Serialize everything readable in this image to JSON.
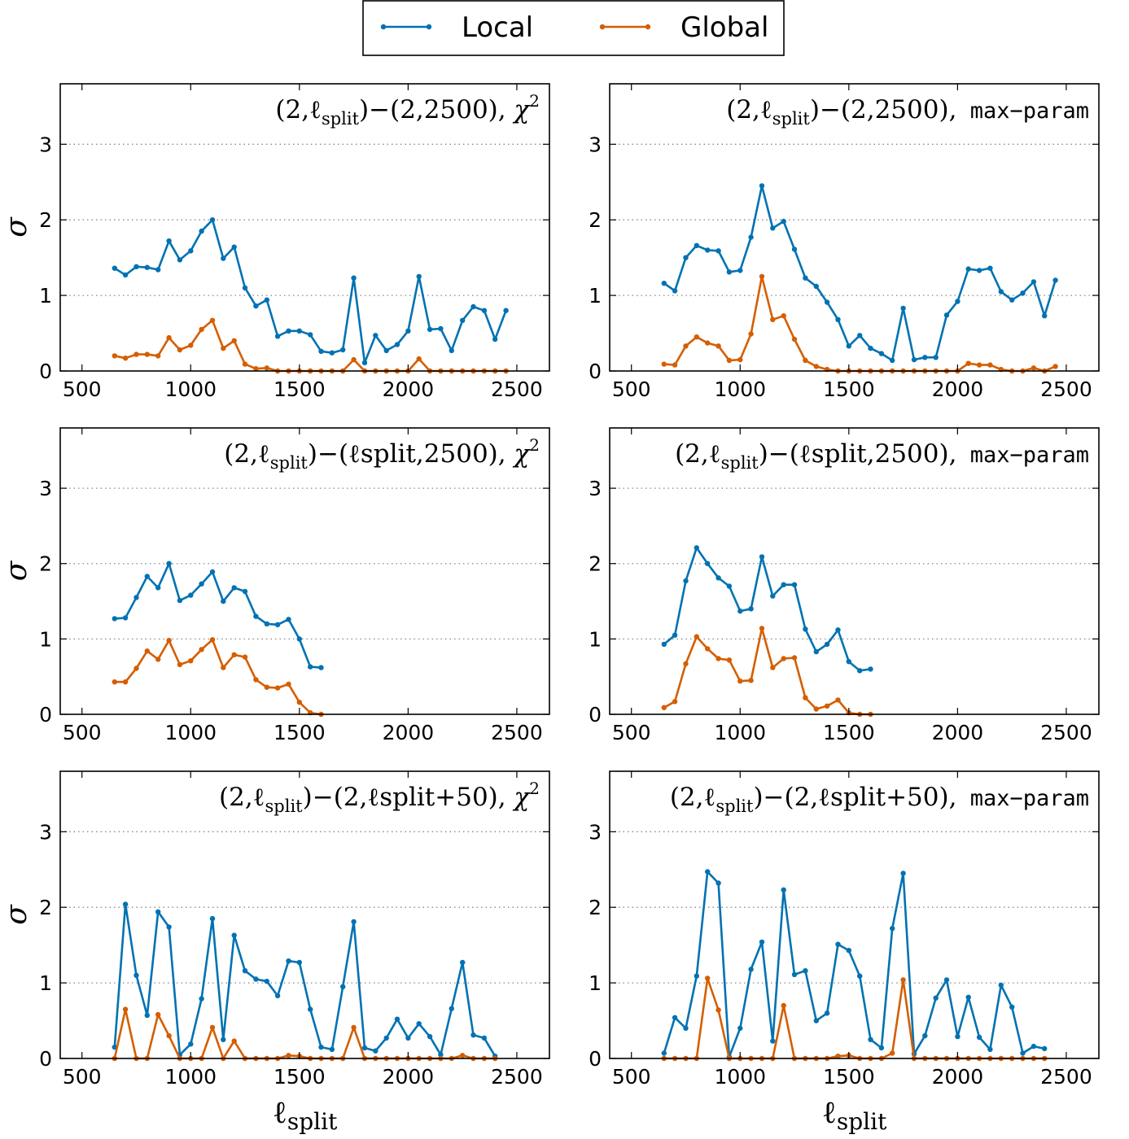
{
  "legend": {
    "placement": "top-center",
    "entries": [
      {
        "label": "Local",
        "color": "#0072b2"
      },
      {
        "label": "Global",
        "color": "#d55e00"
      }
    ]
  },
  "xlabel": {
    "main": "ℓ",
    "sub": "split"
  },
  "ylabel": "σ",
  "chart_data": [
    {
      "type": "line",
      "title": {
        "pre": "(2,ℓ",
        "sub": "split",
        "post": ")−(2,2500),",
        "method": "χ",
        "method_sup": "2",
        "method_style": "serif"
      },
      "xlim": [
        400,
        2650
      ],
      "ylim": [
        0,
        3.8
      ],
      "xticks": [
        500,
        1000,
        1500,
        2000,
        2500
      ],
      "yticks": [
        0,
        1,
        2,
        3
      ],
      "grid": "horizontal-dotted",
      "x": [
        650,
        700,
        750,
        800,
        850,
        900,
        950,
        1000,
        1050,
        1100,
        1150,
        1200,
        1250,
        1300,
        1350,
        1400,
        1450,
        1500,
        1550,
        1600,
        1650,
        1700,
        1750,
        1800,
        1850,
        1900,
        1950,
        2000,
        2050,
        2100,
        2150,
        2200,
        2250,
        2300,
        2350,
        2400,
        2450
      ],
      "series": [
        {
          "name": "Local",
          "values": [
            1.36,
            1.27,
            1.38,
            1.37,
            1.34,
            1.72,
            1.47,
            1.59,
            1.85,
            2.0,
            1.49,
            1.64,
            1.1,
            0.86,
            0.94,
            0.46,
            0.53,
            0.53,
            0.48,
            0.26,
            0.24,
            0.28,
            1.23,
            0.11,
            0.47,
            0.27,
            0.35,
            0.53,
            1.25,
            0.55,
            0.56,
            0.27,
            0.67,
            0.85,
            0.8,
            0.42,
            0.8
          ]
        },
        {
          "name": "Global",
          "values": [
            0.2,
            0.17,
            0.22,
            0.22,
            0.2,
            0.44,
            0.28,
            0.34,
            0.55,
            0.67,
            0.3,
            0.4,
            0.09,
            0.03,
            0.04,
            0.0,
            0.0,
            0.0,
            0.0,
            0.0,
            0.0,
            0.0,
            0.15,
            0.0,
            0.0,
            0.0,
            0.0,
            0.0,
            0.16,
            0.0,
            0.0,
            0.0,
            0.0,
            0.0,
            0.0,
            0.0,
            0.0
          ]
        }
      ]
    },
    {
      "type": "line",
      "title": {
        "pre": "(2,ℓ",
        "sub": "split",
        "post": ")−(2,2500),",
        "method": "max−param",
        "method_sup": "",
        "method_style": "mono"
      },
      "xlim": [
        400,
        2650
      ],
      "ylim": [
        0,
        3.8
      ],
      "xticks": [
        500,
        1000,
        1500,
        2000,
        2500
      ],
      "yticks": [
        0,
        1,
        2,
        3
      ],
      "grid": "horizontal-dotted",
      "x": [
        650,
        700,
        750,
        800,
        850,
        900,
        950,
        1000,
        1050,
        1100,
        1150,
        1200,
        1250,
        1300,
        1350,
        1400,
        1450,
        1500,
        1550,
        1600,
        1650,
        1700,
        1750,
        1800,
        1850,
        1900,
        1950,
        2000,
        2050,
        2100,
        2150,
        2200,
        2250,
        2300,
        2350,
        2400,
        2450
      ],
      "series": [
        {
          "name": "Local",
          "values": [
            1.16,
            1.06,
            1.5,
            1.66,
            1.6,
            1.59,
            1.31,
            1.33,
            1.77,
            2.45,
            1.89,
            1.98,
            1.61,
            1.23,
            1.12,
            0.91,
            0.68,
            0.33,
            0.47,
            0.3,
            0.23,
            0.14,
            0.83,
            0.15,
            0.18,
            0.18,
            0.74,
            0.92,
            1.35,
            1.33,
            1.36,
            1.05,
            0.94,
            1.03,
            1.18,
            0.73,
            1.2
          ]
        },
        {
          "name": "Global",
          "values": [
            0.09,
            0.08,
            0.33,
            0.45,
            0.37,
            0.33,
            0.14,
            0.15,
            0.49,
            1.25,
            0.68,
            0.73,
            0.42,
            0.14,
            0.06,
            0.02,
            0.0,
            0.0,
            0.0,
            0.0,
            0.0,
            0.0,
            0.0,
            0.0,
            0.0,
            0.0,
            0.0,
            0.0,
            0.1,
            0.08,
            0.08,
            0.02,
            0.0,
            0.0,
            0.04,
            0.0,
            0.06
          ]
        }
      ]
    },
    {
      "type": "line",
      "title": {
        "pre": "(2,ℓ",
        "sub": "split",
        "post": ")−(ℓsplit,2500),",
        "method": "χ",
        "method_sup": "2",
        "method_style": "serif"
      },
      "xlim": [
        400,
        2650
      ],
      "ylim": [
        0,
        3.8
      ],
      "xticks": [
        500,
        1000,
        1500,
        2000,
        2500
      ],
      "yticks": [
        0,
        1,
        2,
        3
      ],
      "grid": "horizontal-dotted",
      "x": [
        650,
        700,
        750,
        800,
        850,
        900,
        950,
        1000,
        1050,
        1100,
        1150,
        1200,
        1250,
        1300,
        1350,
        1400,
        1450,
        1500,
        1550,
        1600
      ],
      "series": [
        {
          "name": "Local",
          "values": [
            1.27,
            1.28,
            1.55,
            1.83,
            1.68,
            2.0,
            1.51,
            1.58,
            1.73,
            1.89,
            1.5,
            1.68,
            1.63,
            1.3,
            1.2,
            1.19,
            1.26,
            1.0,
            0.63,
            0.62
          ]
        },
        {
          "name": "Global",
          "values": [
            0.43,
            0.43,
            0.61,
            0.84,
            0.73,
            0.98,
            0.66,
            0.71,
            0.86,
            0.99,
            0.62,
            0.79,
            0.76,
            0.46,
            0.36,
            0.35,
            0.4,
            0.16,
            0.02,
            0.0
          ]
        }
      ]
    },
    {
      "type": "line",
      "title": {
        "pre": "(2,ℓ",
        "sub": "split",
        "post": ")−(ℓsplit,2500),",
        "method": "max−param",
        "method_sup": "",
        "method_style": "mono"
      },
      "xlim": [
        400,
        2650
      ],
      "ylim": [
        0,
        3.8
      ],
      "xticks": [
        500,
        1000,
        1500,
        2000,
        2500
      ],
      "yticks": [
        0,
        1,
        2,
        3
      ],
      "grid": "horizontal-dotted",
      "x": [
        650,
        700,
        750,
        800,
        850,
        900,
        950,
        1000,
        1050,
        1100,
        1150,
        1200,
        1250,
        1300,
        1350,
        1400,
        1450,
        1500,
        1550,
        1600
      ],
      "series": [
        {
          "name": "Local",
          "values": [
            0.93,
            1.05,
            1.77,
            2.21,
            2.0,
            1.81,
            1.7,
            1.37,
            1.4,
            2.09,
            1.57,
            1.72,
            1.72,
            1.13,
            0.83,
            0.93,
            1.12,
            0.7,
            0.58,
            0.6
          ]
        },
        {
          "name": "Global",
          "values": [
            0.09,
            0.17,
            0.67,
            1.03,
            0.87,
            0.74,
            0.72,
            0.44,
            0.45,
            1.14,
            0.62,
            0.74,
            0.75,
            0.22,
            0.07,
            0.11,
            0.19,
            0.02,
            0.0,
            0.0
          ]
        }
      ]
    },
    {
      "type": "line",
      "title": {
        "pre": "(2,ℓ",
        "sub": "split",
        "post": ")−(2,ℓsplit+50),",
        "method": "χ",
        "method_sup": "2",
        "method_style": "serif"
      },
      "xlim": [
        400,
        2650
      ],
      "ylim": [
        0,
        3.8
      ],
      "xticks": [
        500,
        1000,
        1500,
        2000,
        2500
      ],
      "yticks": [
        0,
        1,
        2,
        3
      ],
      "grid": "horizontal-dotted",
      "x": [
        650,
        700,
        750,
        800,
        850,
        900,
        950,
        1000,
        1050,
        1100,
        1150,
        1200,
        1250,
        1300,
        1350,
        1400,
        1450,
        1500,
        1550,
        1600,
        1650,
        1700,
        1750,
        1800,
        1850,
        1900,
        1950,
        2000,
        2050,
        2100,
        2150,
        2200,
        2250,
        2300,
        2350,
        2400
      ],
      "series": [
        {
          "name": "Local",
          "values": [
            0.15,
            2.04,
            1.1,
            0.57,
            1.94,
            1.74,
            0.05,
            0.19,
            0.79,
            1.85,
            0.25,
            1.63,
            1.16,
            1.05,
            1.02,
            0.83,
            1.29,
            1.27,
            0.65,
            0.15,
            0.12,
            0.95,
            1.81,
            0.14,
            0.1,
            0.27,
            0.52,
            0.27,
            0.46,
            0.29,
            0.05,
            0.66,
            1.27,
            0.31,
            0.27,
            0.03
          ]
        },
        {
          "name": "Global",
          "values": [
            0.0,
            0.65,
            0.0,
            0.0,
            0.58,
            0.3,
            0.0,
            0.0,
            0.0,
            0.41,
            0.0,
            0.23,
            0.0,
            0.0,
            0.0,
            0.0,
            0.04,
            0.03,
            0.0,
            0.0,
            0.0,
            0.0,
            0.41,
            0.0,
            0.0,
            0.0,
            0.0,
            0.0,
            0.0,
            0.0,
            0.0,
            0.0,
            0.04,
            0.0,
            0.0,
            0.0
          ]
        }
      ]
    },
    {
      "type": "line",
      "title": {
        "pre": "(2,ℓ",
        "sub": "split",
        "post": ")−(2,ℓsplit+50),",
        "method": "max−param",
        "method_sup": "",
        "method_style": "mono"
      },
      "xlim": [
        400,
        2650
      ],
      "ylim": [
        0,
        3.8
      ],
      "xticks": [
        500,
        1000,
        1500,
        2000,
        2500
      ],
      "yticks": [
        0,
        1,
        2,
        3
      ],
      "grid": "horizontal-dotted",
      "x": [
        650,
        700,
        750,
        800,
        850,
        900,
        950,
        1000,
        1050,
        1100,
        1150,
        1200,
        1250,
        1300,
        1350,
        1400,
        1450,
        1500,
        1550,
        1600,
        1650,
        1700,
        1750,
        1800,
        1850,
        1900,
        1950,
        2000,
        2050,
        2100,
        2150,
        2200,
        2250,
        2300,
        2350,
        2400
      ],
      "series": [
        {
          "name": "Local",
          "values": [
            0.07,
            0.54,
            0.4,
            1.09,
            2.47,
            2.32,
            0.02,
            0.4,
            1.18,
            1.54,
            0.23,
            2.23,
            1.11,
            1.16,
            0.5,
            0.6,
            1.51,
            1.43,
            1.09,
            0.25,
            0.14,
            1.72,
            2.45,
            0.06,
            0.3,
            0.8,
            1.04,
            0.29,
            0.81,
            0.28,
            0.12,
            0.97,
            0.68,
            0.07,
            0.16,
            0.13
          ]
        },
        {
          "name": "Global",
          "values": [
            0.0,
            0.0,
            0.0,
            0.0,
            1.06,
            0.64,
            0.0,
            0.0,
            0.0,
            0.0,
            0.0,
            0.7,
            0.0,
            0.0,
            0.0,
            0.0,
            0.03,
            0.04,
            0.0,
            0.0,
            0.0,
            0.07,
            1.04,
            0.0,
            0.0,
            0.0,
            0.0,
            0.0,
            0.0,
            0.0,
            0.0,
            0.0,
            0.0,
            0.0,
            0.0,
            0.0
          ]
        }
      ]
    }
  ]
}
